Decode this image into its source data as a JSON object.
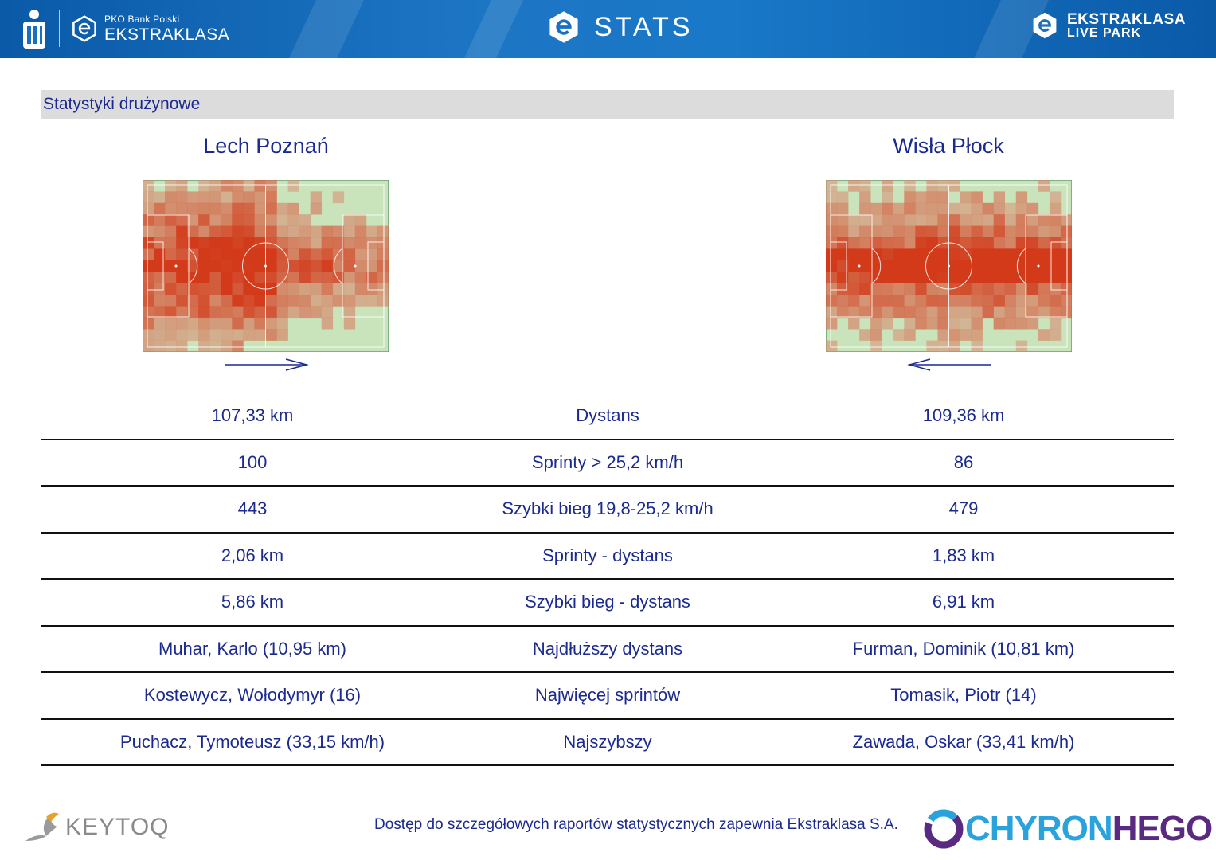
{
  "header": {
    "pko_small": "PKO Bank Polski",
    "pko_big": "EKSTRAKLASA",
    "title": "STATS",
    "right_line1": "EKSTRAKLASA",
    "right_line2": "LIVE PARK"
  },
  "section": {
    "title": "Statystyki drużynowe"
  },
  "teams": {
    "home": {
      "name": "Lech Poznań",
      "attack_direction": "right"
    },
    "away": {
      "name": "Wisła Płock",
      "attack_direction": "left"
    }
  },
  "colors": {
    "banner": "#1a70bf",
    "text": "#1b2a8f",
    "pitch": "#c9e3bb",
    "heat_low": "#d9a58a",
    "heat_high": "#d23a1a"
  },
  "stats": [
    {
      "home": "107,33 km",
      "label": "Dystans",
      "away": "109,36 km"
    },
    {
      "home": "100",
      "label": "Sprinty > 25,2 km/h",
      "away": "86"
    },
    {
      "home": "443",
      "label": "Szybki bieg 19,8-25,2 km/h",
      "away": "479"
    },
    {
      "home": "2,06 km",
      "label": "Sprinty - dystans",
      "away": "1,83 km"
    },
    {
      "home": "5,86 km",
      "label": "Szybki bieg - dystans",
      "away": "6,91 km"
    },
    {
      "home": "Muhar, Karlo (10,95 km)",
      "label": "Najdłuższy dystans",
      "away": "Furman, Dominik (10,81 km)"
    },
    {
      "home": "Kostewycz, Wołodymyr (16)",
      "label": "Najwięcej sprintów",
      "away": "Tomasik, Piotr (14)"
    },
    {
      "home": "Puchacz, Tymoteusz (33,15 km/h)",
      "label": "Najszybszy",
      "away": "Zawada, Oskar (33,41 km/h)"
    }
  ],
  "footer": {
    "note": "Dostęp do szczegółowych raportów statystycznych zapewnia Ekstraklasa S.A.",
    "keytoq": "KEYTOQ",
    "chyron_a": "CHYRON",
    "chyron_b": "HEGO"
  }
}
